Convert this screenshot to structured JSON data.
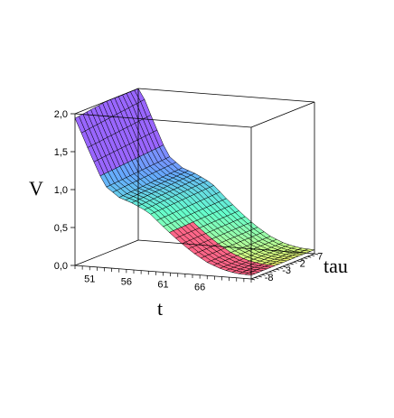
{
  "chart_data": {
    "type": "surface3d",
    "title": "",
    "xlabel": "t",
    "ylabel": "tau",
    "zlabel": "V",
    "x_ticks": [
      "51",
      "56",
      "61",
      "66"
    ],
    "y_ticks": [
      "-8",
      "-3",
      "2",
      "7"
    ],
    "z_ticks": [
      "0,0",
      "0,5",
      "1,0",
      "1,5",
      "2,0"
    ],
    "xlim": [
      49,
      73
    ],
    "ylim": [
      -10,
      8
    ],
    "zlim": [
      0,
      2
    ],
    "surface_profile": {
      "t": [
        49,
        51,
        53,
        55,
        57,
        59,
        61,
        63,
        65,
        67,
        69,
        71,
        73
      ],
      "V": [
        2.0,
        1.55,
        1.12,
        0.97,
        0.9,
        0.8,
        0.62,
        0.45,
        0.3,
        0.18,
        0.1,
        0.06,
        0.05
      ]
    },
    "colormap": [
      "#9966ff",
      "#66aaff",
      "#66ffcc",
      "#ccff88",
      "#ffee66",
      "#ff6688"
    ],
    "box": true
  }
}
